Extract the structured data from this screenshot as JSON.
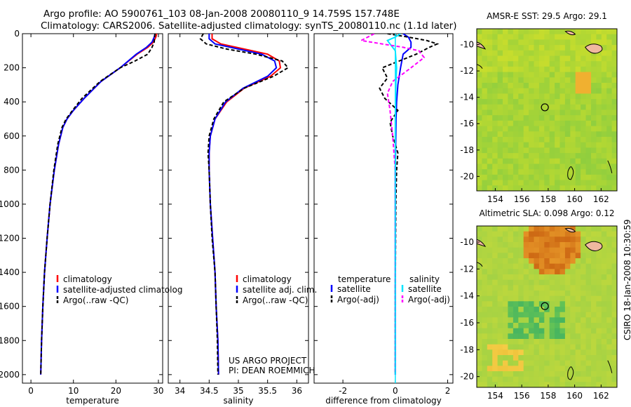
{
  "header": {
    "line1": "Argo profile: AO 5900761_103 08-Jan-2008 20080110_9 14.759S 157.748E",
    "line2": "Climatology: CARS2006. Satellite-adjusted climatology: synTS_20080110.nc (1.1d later)"
  },
  "timestamp": "CSIRO 18-Jan-2008 10:30:59",
  "colors": {
    "climatology": "#ff0000",
    "satellite": "#0000ff",
    "argo": "#000000",
    "sal_satellite": "#00e5ff",
    "sal_argo": "#ff00ff"
  },
  "chart_data": [
    {
      "type": "line",
      "xlabel": "temperature",
      "ylabel": "",
      "xlim": [
        -2,
        31
      ],
      "ylim": [
        2050,
        0
      ],
      "xticks": [
        "0",
        "10",
        "20",
        "30"
      ],
      "xtick_values": [
        0,
        10,
        20,
        30
      ],
      "yticks": [
        "0",
        "200",
        "400",
        "600",
        "800",
        "1000",
        "1200",
        "1400",
        "1600",
        "1800",
        "2000"
      ],
      "ytick_values": [
        0,
        200,
        400,
        600,
        800,
        1000,
        1200,
        1400,
        1600,
        1800,
        2000
      ],
      "legend": [
        "climatology",
        "satellite-adjusted climatolog",
        "Argo(..raw -QC)"
      ],
      "series": [
        {
          "name": "climatology",
          "color": "#ff0000",
          "dash": "",
          "x": [
            29.6,
            29.4,
            28.8,
            27.5,
            25,
            21,
            16.5,
            12.5,
            10,
            8.5,
            7.5,
            6.5,
            5.5,
            4.5,
            3.8,
            3.2,
            2.8,
            2.5,
            2.3
          ],
          "y": [
            0,
            20,
            50,
            80,
            120,
            200,
            280,
            380,
            450,
            500,
            550,
            650,
            800,
            1000,
            1200,
            1400,
            1600,
            1800,
            2000
          ]
        },
        {
          "name": "satellite-adjusted climatolog",
          "color": "#0000ff",
          "dash": "",
          "x": [
            29.2,
            29,
            28.5,
            27.2,
            24.8,
            21,
            16.5,
            12.5,
            10,
            8.5,
            7.5,
            6.5,
            5.5,
            4.5,
            3.8,
            3.2,
            2.8,
            2.5,
            2.3
          ],
          "y": [
            0,
            20,
            50,
            80,
            120,
            200,
            280,
            380,
            450,
            500,
            550,
            650,
            800,
            1000,
            1200,
            1400,
            1600,
            1800,
            2000
          ]
        },
        {
          "name": "Argo(..raw -QC)",
          "color": "#000000",
          "dash": "5,3",
          "x": [
            29.2,
            29.1,
            29,
            28.5,
            27.5,
            24.5,
            21,
            16.3,
            12,
            9.8,
            8.3,
            7.3,
            6.3,
            5.4,
            4.5,
            3.8,
            3.2,
            2.8,
            2.5,
            2.3
          ],
          "y": [
            0,
            20,
            50,
            80,
            120,
            160,
            200,
            280,
            380,
            450,
            500,
            550,
            650,
            800,
            1000,
            1200,
            1400,
            1600,
            1800,
            2000
          ]
        }
      ]
    },
    {
      "type": "line",
      "xlabel": "salinity",
      "ylabel": "",
      "xlim": [
        33.8,
        36.2
      ],
      "ylim": [
        2050,
        0
      ],
      "xticks": [
        "34",
        "34.5",
        "35",
        "35.5",
        "36"
      ],
      "xtick_values": [
        34,
        34.5,
        35,
        35.5,
        36
      ],
      "legend": [
        "climatology",
        "satellite adj. clim.",
        "Argo(..raw -QC)"
      ],
      "series": [
        {
          "name": "climatology",
          "color": "#ff0000",
          "dash": "",
          "x": [
            34.55,
            34.55,
            34.7,
            35.1,
            35.5,
            35.7,
            35.72,
            35.55,
            35.1,
            34.8,
            34.6,
            34.52,
            34.5,
            34.5,
            34.52,
            34.56,
            34.6,
            34.62,
            34.65,
            34.66
          ],
          "y": [
            0,
            30,
            60,
            90,
            120,
            160,
            200,
            250,
            320,
            400,
            500,
            600,
            700,
            800,
            1000,
            1200,
            1400,
            1600,
            1800,
            2000
          ]
        },
        {
          "name": "satellite adj. clim.",
          "color": "#0000ff",
          "dash": "",
          "x": [
            34.5,
            34.5,
            34.6,
            35,
            35.4,
            35.62,
            35.65,
            35.5,
            35.08,
            34.78,
            34.6,
            34.52,
            34.5,
            34.5,
            34.52,
            34.56,
            34.6,
            34.62,
            34.65,
            34.66
          ],
          "y": [
            0,
            30,
            60,
            90,
            120,
            160,
            200,
            250,
            320,
            400,
            500,
            600,
            700,
            800,
            1000,
            1200,
            1400,
            1600,
            1800,
            2000
          ]
        },
        {
          "name": "Argo(..raw -QC)",
          "color": "#000000",
          "dash": "5,3",
          "x": [
            34.4,
            34.35,
            34.45,
            34.8,
            35.3,
            35.75,
            35.85,
            35.6,
            35.1,
            34.75,
            34.58,
            34.5,
            34.48,
            34.5,
            34.52,
            34.55,
            34.6,
            34.62,
            34.64,
            34.65
          ],
          "y": [
            0,
            30,
            60,
            90,
            120,
            160,
            200,
            250,
            320,
            400,
            500,
            600,
            700,
            800,
            1000,
            1200,
            1400,
            1600,
            1800,
            2000
          ]
        }
      ],
      "annotation": [
        "US ARGO PROJECT",
        "PI: DEAN ROEMMICH"
      ]
    },
    {
      "type": "line",
      "xlabel": "difference from climatology",
      "ylabel": "",
      "xlim": [
        -3.1,
        2.2
      ],
      "ylim": [
        2050,
        0
      ],
      "xticks": [
        "-2",
        "0",
        "2"
      ],
      "xtick_values": [
        -2,
        0,
        2
      ],
      "legend_groups": [
        {
          "title": "temperature",
          "items": [
            "satellite",
            "Argo(-adj)"
          ]
        },
        {
          "title": "salinity",
          "items": [
            "satellite",
            "Argo(-adj)"
          ]
        }
      ],
      "series": [
        {
          "name": "temperature satellite",
          "color": "#0000ff",
          "dash": "",
          "x": [
            0.3,
            0.5,
            0.6,
            0.6,
            0.3,
            0.2,
            0.1,
            0.05,
            0.03,
            0.02,
            0,
            0,
            0,
            0,
            0,
            0
          ],
          "y": [
            0,
            20,
            50,
            80,
            120,
            200,
            300,
            400,
            500,
            600,
            800,
            1000,
            1200,
            1500,
            1800,
            2000
          ]
        },
        {
          "name": "temperature Argo(-adj)",
          "color": "#000000",
          "dash": "5,3",
          "x": [
            -0.3,
            0.5,
            1.2,
            1.6,
            1.3,
            0.8,
            -0.5,
            -0.3,
            -0.6,
            -0.4,
            0.1,
            -0.2,
            -0.1,
            0.1,
            0.05,
            0.02,
            0,
            0
          ],
          "y": [
            0,
            20,
            40,
            60,
            80,
            120,
            200,
            260,
            320,
            380,
            450,
            520,
            600,
            700,
            800,
            1000,
            1500,
            2000
          ]
        },
        {
          "name": "salinity satellite",
          "color": "#00e5ff",
          "dash": "",
          "x": [
            0.2,
            0,
            -0.3,
            -0.2,
            0,
            0.05,
            0.02,
            0,
            0,
            0,
            0,
            0
          ],
          "y": [
            0,
            20,
            40,
            60,
            100,
            200,
            300,
            500,
            800,
            1200,
            1600,
            2000
          ]
        },
        {
          "name": "salinity Argo(-adj)",
          "color": "#ff00ff",
          "dash": "5,3",
          "x": [
            -0.8,
            -1.3,
            -0.5,
            0.3,
            0.9,
            1.1,
            0.6,
            -0.1,
            -0.3,
            -0.2,
            -0.1,
            0,
            0
          ],
          "y": [
            0,
            40,
            60,
            80,
            100,
            140,
            200,
            280,
            350,
            450,
            600,
            800,
            2000
          ]
        }
      ]
    },
    {
      "type": "heatmap",
      "title": "AMSR-E SST: 29.5 Argo: 29.1",
      "xticks": [
        "154",
        "156",
        "158",
        "160",
        "162"
      ],
      "xtick_values": [
        154,
        156,
        158,
        160,
        162
      ],
      "yticks": [
        "-10",
        "-12",
        "-14",
        "-16",
        "-18",
        "-20"
      ],
      "ytick_values": [
        -10,
        -12,
        -14,
        -16,
        -18,
        -20
      ],
      "xlim": [
        152.6,
        163.2
      ],
      "ylim": [
        -21.1,
        -8.8
      ],
      "marker": {
        "lon": 157.748,
        "lat": -14.759
      }
    },
    {
      "type": "heatmap",
      "title": "Altimetric SLA: 0.098 Argo: 0.12",
      "xticks": [
        "154",
        "156",
        "158",
        "160",
        "162"
      ],
      "xtick_values": [
        154,
        156,
        158,
        160,
        162
      ],
      "yticks": [
        "-10",
        "-12",
        "-14",
        "-16",
        "-18",
        "-20"
      ],
      "ytick_values": [
        -10,
        -12,
        -14,
        -16,
        -18,
        -20
      ],
      "xlim": [
        152.6,
        163.2
      ],
      "ylim": [
        -20.8,
        -8.8
      ],
      "marker": {
        "lon": 157.748,
        "lat": -14.759
      }
    }
  ]
}
